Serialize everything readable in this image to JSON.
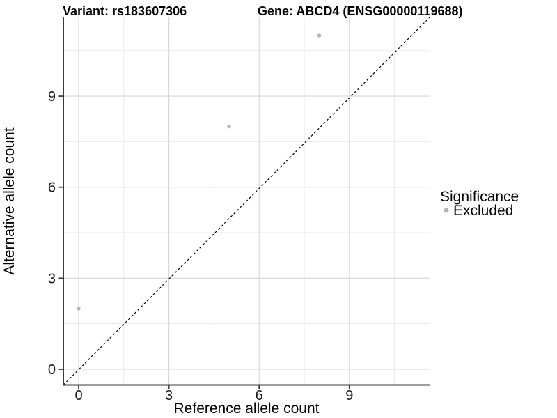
{
  "titles": {
    "variant": "Variant: rs183607306",
    "gene": "Gene: ABCD4 (ENSG00000119688)"
  },
  "legend": {
    "title": "Significance",
    "items": [
      {
        "label": "Excluded",
        "color": "#b3b3b3"
      }
    ]
  },
  "chart_data": {
    "type": "scatter",
    "title": "Variant: rs183607306 | Gene: ABCD4 (ENSG00000119688)",
    "xlabel": "Reference allele count",
    "ylabel": "Alternative allele count",
    "x_ticks": [
      0,
      3,
      6,
      9
    ],
    "y_ticks": [
      0,
      3,
      6,
      9
    ],
    "xlim": [
      -0.5,
      11.65
    ],
    "ylim": [
      -0.5,
      11.6
    ],
    "x_major_gridlines": [
      0,
      3,
      6,
      9
    ],
    "x_minor_gridlines": [
      1.5,
      4.5,
      7.5,
      10.5
    ],
    "y_major_gridlines": [
      0,
      3,
      6,
      9
    ],
    "y_minor_gridlines": [
      1.5,
      4.5,
      7.5,
      10.5
    ],
    "series": [
      {
        "name": "Excluded",
        "color": "#b3b3b3",
        "points": [
          {
            "x": 0,
            "y": 2
          },
          {
            "x": 5,
            "y": 8
          },
          {
            "x": 8,
            "y": 11
          }
        ]
      }
    ],
    "reference_line": {
      "type": "identity",
      "style": "dashed",
      "color": "#000000"
    },
    "legend_position": "right",
    "grid": true,
    "colors": {
      "point": "#b3b3b3",
      "grid_major": "#d6d6d6",
      "grid_minor": "#eaeaea",
      "axis": "#3c3c3c",
      "axis_text": "#1a1a1a",
      "dashed_line": "#000000"
    }
  }
}
